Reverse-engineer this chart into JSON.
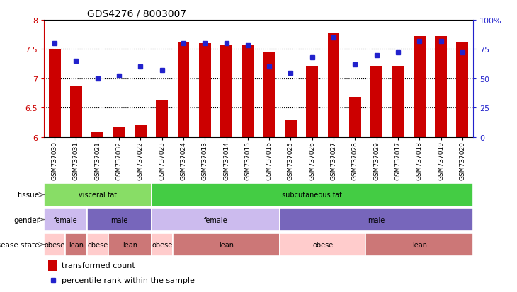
{
  "title": "GDS4276 / 8003007",
  "samples": [
    "GSM737030",
    "GSM737031",
    "GSM737021",
    "GSM737032",
    "GSM737022",
    "GSM737023",
    "GSM737024",
    "GSM737013",
    "GSM737014",
    "GSM737015",
    "GSM737016",
    "GSM737025",
    "GSM737026",
    "GSM737027",
    "GSM737028",
    "GSM737029",
    "GSM737017",
    "GSM737018",
    "GSM737019",
    "GSM737020"
  ],
  "bar_values": [
    7.5,
    6.88,
    6.08,
    6.18,
    6.2,
    6.62,
    7.62,
    7.6,
    7.58,
    7.58,
    7.45,
    6.28,
    7.2,
    7.78,
    6.68,
    7.2,
    7.22,
    7.72,
    7.72,
    7.62
  ],
  "dot_values": [
    80,
    65,
    50,
    52,
    60,
    57,
    80,
    80,
    80,
    78,
    60,
    55,
    68,
    85,
    62,
    70,
    72,
    82,
    82,
    72
  ],
  "ylim_left": [
    6.0,
    8.0
  ],
  "ylim_right": [
    0,
    100
  ],
  "yticks_left": [
    6.0,
    6.5,
    7.0,
    7.5,
    8.0
  ],
  "ytick_labels_left": [
    "6",
    "6.5",
    "7",
    "7.5",
    "8"
  ],
  "yticks_right": [
    0,
    25,
    50,
    75,
    100
  ],
  "ytick_labels_right": [
    "0",
    "25",
    "50",
    "75",
    "100%"
  ],
  "bar_color": "#cc0000",
  "dot_color": "#2222cc",
  "bar_bottom": 6.0,
  "tissue_row": [
    {
      "label": "visceral fat",
      "start": 0,
      "end": 5,
      "color": "#88dd66"
    },
    {
      "label": "subcutaneous fat",
      "start": 5,
      "end": 20,
      "color": "#44cc44"
    }
  ],
  "gender_row": [
    {
      "label": "female",
      "start": 0,
      "end": 2,
      "color": "#ccbbee"
    },
    {
      "label": "male",
      "start": 2,
      "end": 5,
      "color": "#7766bb"
    },
    {
      "label": "female",
      "start": 5,
      "end": 11,
      "color": "#ccbbee"
    },
    {
      "label": "male",
      "start": 11,
      "end": 20,
      "color": "#7766bb"
    }
  ],
  "disease_row": [
    {
      "label": "obese",
      "start": 0,
      "end": 1,
      "color": "#ffcccc"
    },
    {
      "label": "lean",
      "start": 1,
      "end": 2,
      "color": "#cc7777"
    },
    {
      "label": "obese",
      "start": 2,
      "end": 3,
      "color": "#ffcccc"
    },
    {
      "label": "lean",
      "start": 3,
      "end": 5,
      "color": "#cc7777"
    },
    {
      "label": "obese",
      "start": 5,
      "end": 6,
      "color": "#ffcccc"
    },
    {
      "label": "lean",
      "start": 6,
      "end": 11,
      "color": "#cc7777"
    },
    {
      "label": "obese",
      "start": 11,
      "end": 15,
      "color": "#ffcccc"
    },
    {
      "label": "lean",
      "start": 15,
      "end": 20,
      "color": "#cc7777"
    }
  ],
  "legend_bar_label": "transformed count",
  "legend_dot_label": "percentile rank within the sample",
  "axis_left_color": "#cc0000",
  "axis_right_color": "#2222cc",
  "figure_width": 7.3,
  "figure_height": 4.14,
  "dpi": 100
}
